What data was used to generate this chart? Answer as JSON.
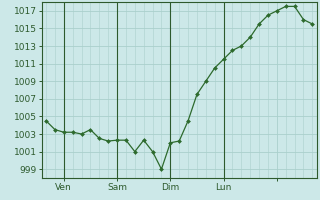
{
  "x_values": [
    0,
    1,
    2,
    3,
    4,
    5,
    6,
    7,
    8,
    9,
    10,
    11,
    12,
    13,
    14,
    15,
    16,
    17,
    18,
    19,
    20,
    21,
    22,
    23,
    24,
    25,
    26,
    27,
    28,
    29,
    30
  ],
  "y_values": [
    1004.5,
    1003.5,
    1003.2,
    1003.2,
    1003.0,
    1003.5,
    1002.5,
    1002.2,
    1002.3,
    1002.3,
    1001.0,
    1002.3,
    1001.0,
    999.0,
    1002.0,
    1002.2,
    1004.5,
    1007.5,
    1009.0,
    1010.5,
    1011.5,
    1012.5,
    1013.0,
    1014.0,
    1015.5,
    1016.5,
    1017.0,
    1017.5,
    1017.5,
    1016.0,
    1015.5
  ],
  "xtick_positions": [
    2,
    8,
    14,
    20,
    26
  ],
  "xtick_labels": [
    "Ven",
    "Sam",
    "Dim",
    "Lun",
    ""
  ],
  "ytick_values": [
    999,
    1001,
    1003,
    1005,
    1007,
    1009,
    1011,
    1013,
    1015,
    1017
  ],
  "line_color": "#2d6a2d",
  "marker_color": "#2d6a2d",
  "bg_color": "#cce8e8",
  "grid_color": "#aad0cc",
  "axis_color": "#2d5a2d",
  "ylim": [
    998.0,
    1018.0
  ],
  "xlim": [
    -0.5,
    30.5
  ]
}
